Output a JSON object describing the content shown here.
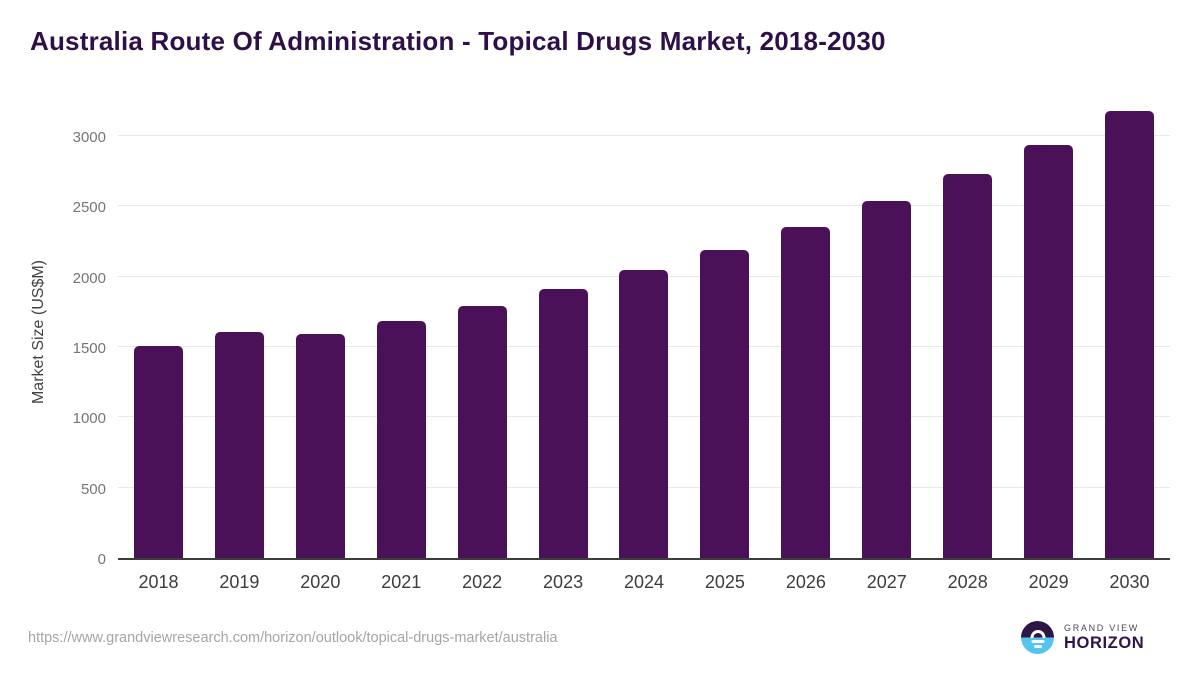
{
  "page": {
    "title": "Australia Route Of Administration - Topical Drugs Market, 2018-2030",
    "source_url": "https://www.grandviewresearch.com/horizon/outlook/topical-drugs-market/australia"
  },
  "logo": {
    "top_text": "GRAND VIEW",
    "bottom_text": "HORIZON"
  },
  "chart_data": {
    "type": "bar",
    "title": "Australia Route Of Administration - Topical Drugs Market, 2018-2030",
    "categories": [
      "2018",
      "2019",
      "2020",
      "2021",
      "2022",
      "2023",
      "2024",
      "2025",
      "2026",
      "2027",
      "2028",
      "2029",
      "2030"
    ],
    "values": [
      1505,
      1605,
      1590,
      1685,
      1790,
      1910,
      2045,
      2190,
      2355,
      2535,
      2730,
      2940,
      3175
    ],
    "xlabel": "",
    "ylabel": "Market Size (US$M)",
    "yticks": [
      0,
      500,
      1000,
      1500,
      2000,
      2500,
      3000
    ],
    "ylim": [
      0,
      3235
    ],
    "grid": "horizontal",
    "legend": "none"
  },
  "colors": {
    "title": "#2e1048",
    "bar": "#4a1159",
    "axis_line": "#3d3d3d",
    "gridline": "#e8e8e8",
    "y_tick_text": "#757575",
    "x_tick_text": "#3d3d3d",
    "url_text": "#a5a5a5",
    "logo_dark_purple": "#2d1643",
    "logo_light_blue": "#56c5ee"
  }
}
